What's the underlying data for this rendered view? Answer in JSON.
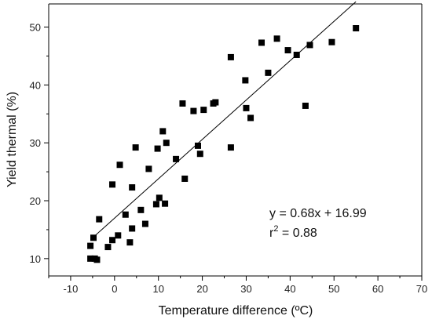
{
  "chart_data": {
    "type": "scatter",
    "title": "",
    "xlabel": "Temperature difference (ºC)",
    "ylabel": "Yield thermal (%)",
    "xlim": [
      -15,
      70
    ],
    "ylim": [
      7,
      54
    ],
    "xticks": [
      -10,
      0,
      10,
      20,
      30,
      40,
      50,
      60,
      70
    ],
    "yticks": [
      10,
      20,
      30,
      40,
      50
    ],
    "grid": false,
    "legend": "none",
    "marker_color": "#000000",
    "series": [
      {
        "marker": "square",
        "points": [
          [
            -5.5,
            10.0
          ],
          [
            -5.5,
            12.2
          ],
          [
            -4.8,
            13.6
          ],
          [
            -4.5,
            10.0
          ],
          [
            -4.0,
            9.8
          ],
          [
            -3.5,
            16.8
          ],
          [
            -1.5,
            12.0
          ],
          [
            -0.5,
            13.2
          ],
          [
            -0.5,
            22.8
          ],
          [
            0.8,
            14.0
          ],
          [
            1.2,
            26.2
          ],
          [
            2.5,
            17.6
          ],
          [
            3.5,
            12.8
          ],
          [
            4.0,
            22.3
          ],
          [
            4.0,
            15.2
          ],
          [
            4.8,
            29.2
          ],
          [
            6.0,
            18.4
          ],
          [
            7.0,
            16.0
          ],
          [
            7.8,
            25.5
          ],
          [
            9.5,
            19.4
          ],
          [
            9.8,
            29.0
          ],
          [
            10.2,
            20.5
          ],
          [
            11.0,
            32.0
          ],
          [
            11.5,
            19.5
          ],
          [
            11.8,
            30.0
          ],
          [
            14.0,
            27.2
          ],
          [
            15.5,
            36.8
          ],
          [
            16.0,
            23.8
          ],
          [
            18.0,
            35.5
          ],
          [
            19.0,
            29.5
          ],
          [
            19.5,
            28.1
          ],
          [
            20.3,
            35.7
          ],
          [
            22.5,
            36.8
          ],
          [
            23.0,
            37.0
          ],
          [
            26.5,
            44.8
          ],
          [
            26.5,
            29.2
          ],
          [
            29.8,
            40.8
          ],
          [
            30.0,
            36.0
          ],
          [
            31.0,
            34.3
          ],
          [
            33.5,
            47.3
          ],
          [
            35.0,
            42.1
          ],
          [
            37.0,
            48.0
          ],
          [
            39.5,
            46.0
          ],
          [
            41.5,
            45.2
          ],
          [
            43.5,
            36.4
          ],
          [
            44.5,
            46.9
          ],
          [
            49.5,
            47.4
          ],
          [
            55.0,
            49.8
          ]
        ]
      }
    ],
    "trendline": {
      "slope": 0.68,
      "intercept": 16.99,
      "x_range": [
        -4.5,
        55.0
      ]
    },
    "annotations": {
      "equation": "y = 0.68x + 16.99",
      "r2_base": "r",
      "r2_sup": "2",
      "r2_rest": " = 0.88"
    }
  }
}
